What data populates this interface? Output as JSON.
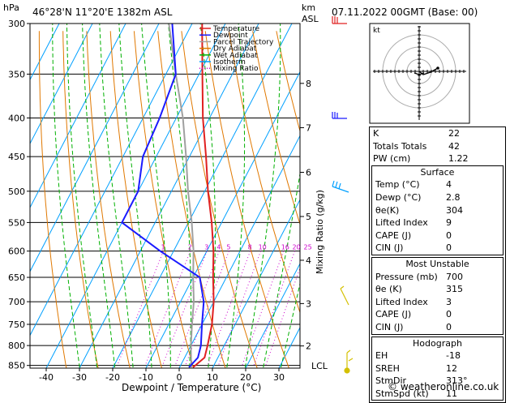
{
  "header": {
    "station": "46°28'N  11°20'E  1382m  ASL",
    "datetime": "07.11.2022  00GMT  (Base: 00)"
  },
  "axes": {
    "p_unit": "hPa",
    "km_unit": "km",
    "asl_unit": "ASL",
    "xlabel": "Dewpoint / Temperature (°C)",
    "mixing_label": "Mixing Ratio (g/kg)",
    "lcl_label": "LCL"
  },
  "legend": [
    "Temperature",
    "Dewpoint",
    "Parcel Trajectory",
    "Dry Adiabat",
    "Wet Adiabat",
    "Isotherm",
    "Mixing Ratio"
  ],
  "hodograph": {
    "label": "kt"
  },
  "indices": {
    "rows": [
      {
        "k": "K",
        "v": "22"
      },
      {
        "k": "Totals Totals",
        "v": "42"
      },
      {
        "k": "PW (cm)",
        "v": "1.22"
      }
    ]
  },
  "surface": {
    "title": "Surface",
    "rows": [
      {
        "k": "Temp (°C)",
        "v": "4"
      },
      {
        "k": "Dewp (°C)",
        "v": "2.8"
      },
      {
        "k": "θe(K)",
        "v": "304"
      },
      {
        "k": "Lifted Index",
        "v": "9"
      },
      {
        "k": "CAPE (J)",
        "v": "0"
      },
      {
        "k": "CIN (J)",
        "v": "0"
      }
    ]
  },
  "most_unstable": {
    "title": "Most Unstable",
    "rows": [
      {
        "k": "Pressure (mb)",
        "v": "700"
      },
      {
        "k": "θe (K)",
        "v": "315"
      },
      {
        "k": "Lifted Index",
        "v": "3"
      },
      {
        "k": "CAPE (J)",
        "v": "0"
      },
      {
        "k": "CIN (J)",
        "v": "0"
      }
    ]
  },
  "hodo_table": {
    "title": "Hodograph",
    "rows": [
      {
        "k": "EH",
        "v": "-18"
      },
      {
        "k": "SREH",
        "v": "12"
      },
      {
        "k": "StmDir",
        "v": "313°"
      },
      {
        "k": "StmSpd (kt)",
        "v": "11"
      }
    ]
  },
  "footer": {
    "copyright": "© weatheronline.co.uk"
  },
  "colors": {
    "temperature": "#e02020",
    "dewpoint": "#1a1aff",
    "parcel": "#a0a0a0",
    "dry_adiabat": "#e07800",
    "wet_adiabat": "#00b000",
    "isotherm": "#00a0ff",
    "mixing": "#cc00cc"
  },
  "chart_data": {
    "type": "skew-t",
    "pressure_ticks": [
      300,
      350,
      400,
      450,
      500,
      550,
      600,
      650,
      700,
      750,
      800,
      850
    ],
    "temp_ticks": [
      -40,
      -30,
      -20,
      -10,
      0,
      10,
      20,
      30
    ],
    "km_ticks": [
      {
        "km": "8",
        "p": 360
      },
      {
        "km": "7",
        "p": 412
      },
      {
        "km": "6",
        "p": 472
      },
      {
        "km": "5",
        "p": 540
      },
      {
        "km": "4",
        "p": 617
      },
      {
        "km": "3",
        "p": 704
      },
      {
        "km": "2",
        "p": 801
      }
    ],
    "mixing_ratio_labels": [
      "1",
      "2",
      "3",
      "4",
      "5",
      "8",
      "10",
      "16",
      "20",
      "25"
    ],
    "temperature": [
      {
        "p": 855,
        "t": 4
      },
      {
        "p": 830,
        "t": 6
      },
      {
        "p": 800,
        "t": 5
      },
      {
        "p": 750,
        "t": 3
      },
      {
        "p": 700,
        "t": 0
      },
      {
        "p": 650,
        "t": -4
      },
      {
        "p": 600,
        "t": -8
      },
      {
        "p": 550,
        "t": -13
      },
      {
        "p": 500,
        "t": -19
      },
      {
        "p": 450,
        "t": -25
      },
      {
        "p": 400,
        "t": -32
      },
      {
        "p": 350,
        "t": -39
      },
      {
        "p": 300,
        "t": -47
      }
    ],
    "dewpoint": [
      {
        "p": 855,
        "t": 2.8
      },
      {
        "p": 830,
        "t": 4
      },
      {
        "p": 800,
        "t": 3
      },
      {
        "p": 750,
        "t": 0
      },
      {
        "p": 700,
        "t": -3
      },
      {
        "p": 650,
        "t": -8
      },
      {
        "p": 600,
        "t": -24
      },
      {
        "p": 550,
        "t": -40
      },
      {
        "p": 500,
        "t": -40
      },
      {
        "p": 450,
        "t": -44
      },
      {
        "p": 400,
        "t": -45
      },
      {
        "p": 350,
        "t": -47
      },
      {
        "p": 300,
        "t": -56
      }
    ],
    "parcel": [
      {
        "p": 855,
        "t": 3.5
      },
      {
        "p": 800,
        "t": 0
      },
      {
        "p": 750,
        "t": -3
      },
      {
        "p": 700,
        "t": -6
      },
      {
        "p": 650,
        "t": -10
      },
      {
        "p": 600,
        "t": -14
      },
      {
        "p": 550,
        "t": -19
      },
      {
        "p": 500,
        "t": -25
      },
      {
        "p": 450,
        "t": -31
      },
      {
        "p": 400,
        "t": -38
      },
      {
        "p": 350,
        "t": -47
      },
      {
        "p": 300,
        "t": -57
      }
    ],
    "dry_adiabats_theta": [
      250,
      260,
      270,
      280,
      290,
      300,
      310,
      320,
      330,
      340,
      350,
      360,
      370,
      380,
      390,
      400,
      410,
      420,
      430
    ],
    "wet_adiabats_t0": [
      -20,
      -15,
      -10,
      -5,
      0,
      5,
      10,
      15,
      20,
      25,
      30,
      35
    ],
    "mixing_ratios": [
      1,
      2,
      3,
      4,
      5,
      8,
      10,
      16,
      20,
      25
    ]
  }
}
